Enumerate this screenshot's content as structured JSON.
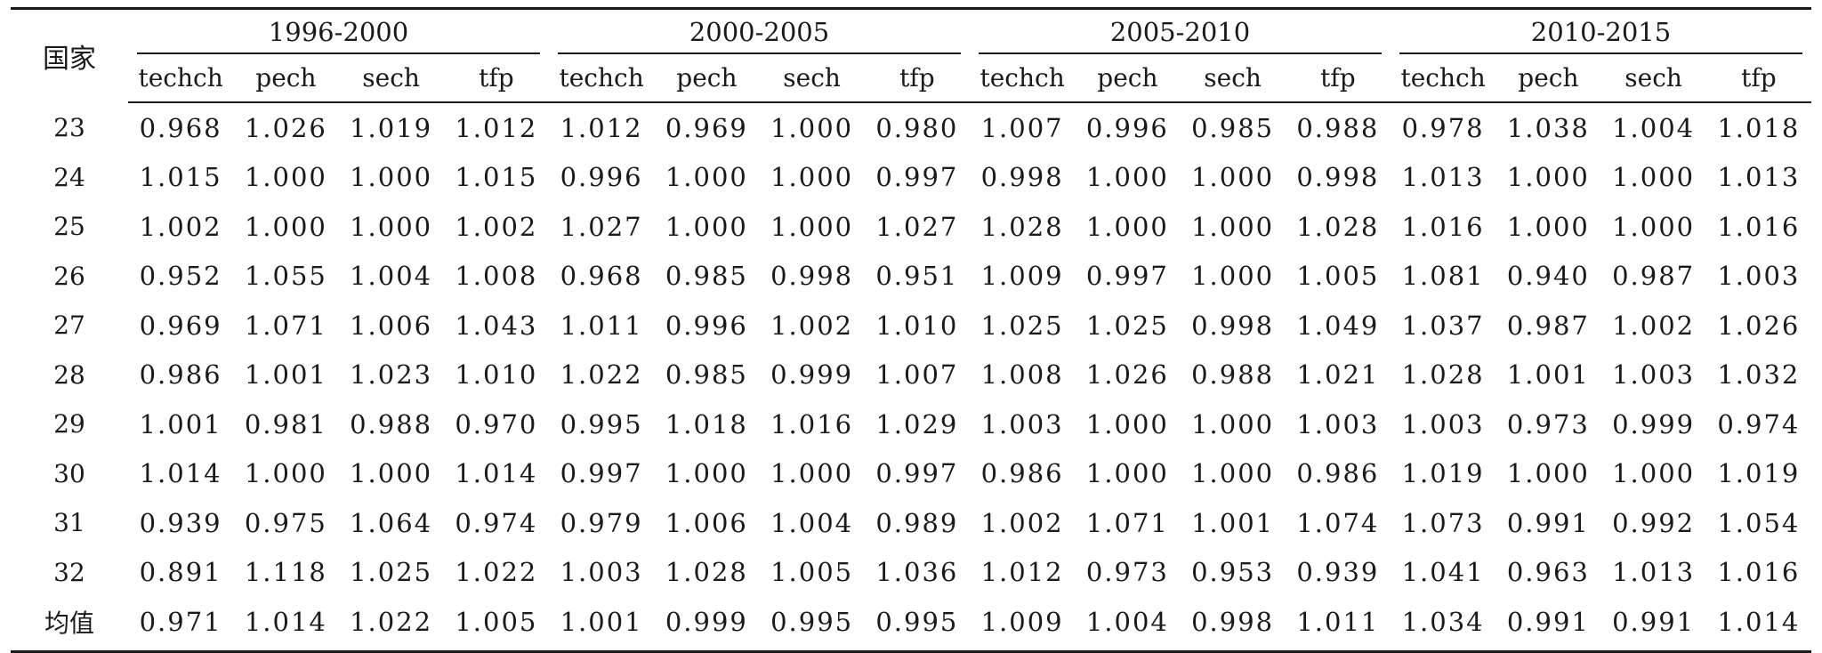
{
  "table": {
    "country_header": "国家",
    "periods": [
      "1996-2000",
      "2000-2005",
      "2005-2010",
      "2010-2015"
    ],
    "sub_headers": [
      "techch",
      "pech",
      "sech",
      "tfp"
    ],
    "rows": [
      {
        "country": "23",
        "values": [
          "0.968",
          "1.026",
          "1.019",
          "1.012",
          "1.012",
          "0.969",
          "1.000",
          "0.980",
          "1.007",
          "0.996",
          "0.985",
          "0.988",
          "0.978",
          "1.038",
          "1.004",
          "1.018"
        ]
      },
      {
        "country": "24",
        "values": [
          "1.015",
          "1.000",
          "1.000",
          "1.015",
          "0.996",
          "1.000",
          "1.000",
          "0.997",
          "0.998",
          "1.000",
          "1.000",
          "0.998",
          "1.013",
          "1.000",
          "1.000",
          "1.013"
        ]
      },
      {
        "country": "25",
        "values": [
          "1.002",
          "1.000",
          "1.000",
          "1.002",
          "1.027",
          "1.000",
          "1.000",
          "1.027",
          "1.028",
          "1.000",
          "1.000",
          "1.028",
          "1.016",
          "1.000",
          "1.000",
          "1.016"
        ]
      },
      {
        "country": "26",
        "values": [
          "0.952",
          "1.055",
          "1.004",
          "1.008",
          "0.968",
          "0.985",
          "0.998",
          "0.951",
          "1.009",
          "0.997",
          "1.000",
          "1.005",
          "1.081",
          "0.940",
          "0.987",
          "1.003"
        ]
      },
      {
        "country": "27",
        "values": [
          "0.969",
          "1.071",
          "1.006",
          "1.043",
          "1.011",
          "0.996",
          "1.002",
          "1.010",
          "1.025",
          "1.025",
          "0.998",
          "1.049",
          "1.037",
          "0.987",
          "1.002",
          "1.026"
        ]
      },
      {
        "country": "28",
        "values": [
          "0.986",
          "1.001",
          "1.023",
          "1.010",
          "1.022",
          "0.985",
          "0.999",
          "1.007",
          "1.008",
          "1.026",
          "0.988",
          "1.021",
          "1.028",
          "1.001",
          "1.003",
          "1.032"
        ]
      },
      {
        "country": "29",
        "values": [
          "1.001",
          "0.981",
          "0.988",
          "0.970",
          "0.995",
          "1.018",
          "1.016",
          "1.029",
          "1.003",
          "1.000",
          "1.000",
          "1.003",
          "1.003",
          "0.973",
          "0.999",
          "0.974"
        ]
      },
      {
        "country": "30",
        "values": [
          "1.014",
          "1.000",
          "1.000",
          "1.014",
          "0.997",
          "1.000",
          "1.000",
          "0.997",
          "0.986",
          "1.000",
          "1.000",
          "0.986",
          "1.019",
          "1.000",
          "1.000",
          "1.019"
        ]
      },
      {
        "country": "31",
        "values": [
          "0.939",
          "0.975",
          "1.064",
          "0.974",
          "0.979",
          "1.006",
          "1.004",
          "0.989",
          "1.002",
          "1.071",
          "1.001",
          "1.074",
          "1.073",
          "0.991",
          "0.992",
          "1.054"
        ]
      },
      {
        "country": "32",
        "values": [
          "0.891",
          "1.118",
          "1.025",
          "1.022",
          "1.003",
          "1.028",
          "1.005",
          "1.036",
          "1.012",
          "0.973",
          "0.953",
          "0.939",
          "1.041",
          "0.963",
          "1.013",
          "1.016"
        ]
      },
      {
        "country": "均值",
        "values": [
          "0.971",
          "1.014",
          "1.022",
          "1.005",
          "1.001",
          "0.999",
          "0.995",
          "0.995",
          "1.009",
          "1.004",
          "0.998",
          "1.011",
          "1.034",
          "0.991",
          "0.991",
          "1.014"
        ]
      }
    ]
  }
}
